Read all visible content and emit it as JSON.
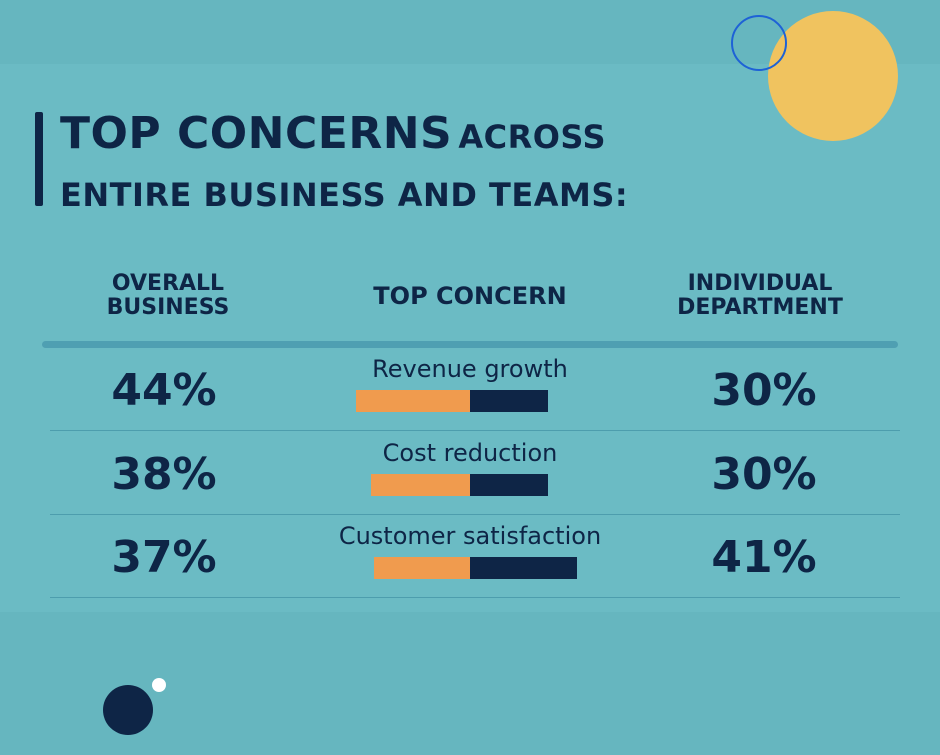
{
  "title": {
    "line1_bold": "TOP CONCERNS",
    "line1_light": "ACROSS",
    "line2": "ENTIRE BUSINESS AND TEAMS:"
  },
  "headers": {
    "overall": [
      "OVERALL",
      "BUSINESS"
    ],
    "concern": "TOP CONCERN",
    "department": [
      "INDIVIDUAL",
      "DEPARTMENT"
    ]
  },
  "colors": {
    "background": "#6bbbc4",
    "navy": "#0e2546",
    "orange": "#f09b4e",
    "yellow": "#f0c35f",
    "blue_ring": "#1e62d6"
  },
  "chart_data": {
    "type": "table",
    "series": [
      {
        "name": "OVERALL BUSINESS",
        "values": [
          44,
          38,
          37
        ]
      },
      {
        "name": "INDIVIDUAL DEPARTMENT",
        "values": [
          30,
          30,
          41
        ]
      }
    ],
    "categories": [
      "Revenue growth",
      "Cost reduction",
      "Customer satisfaction"
    ],
    "rows": [
      {
        "concern": "Revenue growth",
        "overall": 44,
        "overall_label": "44%",
        "department": 30,
        "department_label": "30%"
      },
      {
        "concern": "Cost reduction",
        "overall": 38,
        "overall_label": "38%",
        "department": 30,
        "department_label": "30%"
      },
      {
        "concern": "Customer satisfaction",
        "overall": 37,
        "overall_label": "37%",
        "department": 41,
        "department_label": "41%"
      }
    ]
  }
}
